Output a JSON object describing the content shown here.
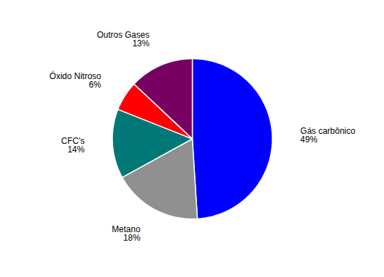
{
  "chart_data": {
    "type": "pie",
    "categories": [
      "Gás carbônico",
      "Metano",
      "CFC's",
      "Óxido Nitroso",
      "Outros Gases"
    ],
    "values": [
      49,
      18,
      14,
      6,
      13
    ],
    "value_labels": [
      "49%",
      "18%",
      "14%",
      "6%",
      "13%"
    ],
    "colors": [
      "#0000FF",
      "#909090",
      "#007878",
      "#FF0000",
      "#780060"
    ],
    "data_labels": true
  }
}
